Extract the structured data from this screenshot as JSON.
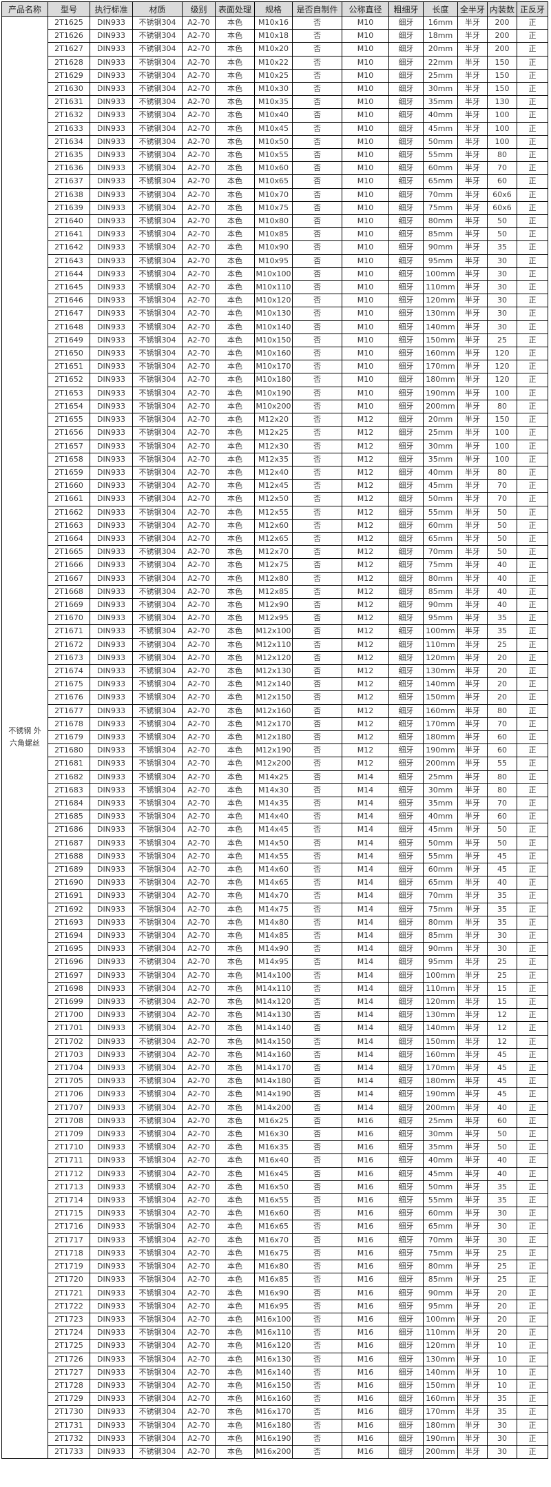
{
  "styles": {
    "header_bg": "#dbdbdb",
    "border_color": "#000000",
    "body_text_color": "#3a3a3a",
    "header_text_color": "#262626",
    "page_bg": "#ffffff"
  },
  "table": {
    "headers": [
      "产品名称",
      "型号",
      "执行标准",
      "材质",
      "级别",
      "表面处理",
      "规格",
      "是否自制件",
      "公称直径",
      "粗细牙",
      "长度",
      "全半牙",
      "内装数",
      "正反牙"
    ],
    "product_name_lines": [
      "不锈钢 外",
      "六角螺丝"
    ],
    "common": {
      "standard": "DIN933",
      "material": "不锈钢304",
      "grade": "A2-70",
      "surface": "本色",
      "self_made": "否",
      "thread_type": "细牙",
      "thread_length": "半牙",
      "direction": "正"
    },
    "row_columns": [
      "model",
      "spec",
      "diameter",
      "length",
      "pack_qty"
    ],
    "rows": [
      [
        "2T1625",
        "M10x16",
        "M10",
        "16mm",
        "200"
      ],
      [
        "2T1626",
        "M10x18",
        "M10",
        "18mm",
        "200"
      ],
      [
        "2T1627",
        "M10x20",
        "M10",
        "20mm",
        "200"
      ],
      [
        "2T1628",
        "M10x22",
        "M10",
        "22mm",
        "150"
      ],
      [
        "2T1629",
        "M10x25",
        "M10",
        "25mm",
        "150"
      ],
      [
        "2T1630",
        "M10x30",
        "M10",
        "30mm",
        "150"
      ],
      [
        "2T1631",
        "M10x35",
        "M10",
        "35mm",
        "130"
      ],
      [
        "2T1632",
        "M10x40",
        "M10",
        "40mm",
        "100"
      ],
      [
        "2T1633",
        "M10x45",
        "M10",
        "45mm",
        "100"
      ],
      [
        "2T1634",
        "M10x50",
        "M10",
        "50mm",
        "100"
      ],
      [
        "2T1635",
        "M10x55",
        "M10",
        "55mm",
        "80"
      ],
      [
        "2T1636",
        "M10x60",
        "M10",
        "60mm",
        "70"
      ],
      [
        "2T1637",
        "M10x65",
        "M10",
        "65mm",
        "60"
      ],
      [
        "2T1638",
        "M10x70",
        "M10",
        "70mm",
        "60x6"
      ],
      [
        "2T1639",
        "M10x75",
        "M10",
        "75mm",
        "60x6"
      ],
      [
        "2T1640",
        "M10x80",
        "M10",
        "80mm",
        "50"
      ],
      [
        "2T1641",
        "M10x85",
        "M10",
        "85mm",
        "50"
      ],
      [
        "2T1642",
        "M10x90",
        "M10",
        "90mm",
        "35"
      ],
      [
        "2T1643",
        "M10x95",
        "M10",
        "95mm",
        "30"
      ],
      [
        "2T1644",
        "M10x100",
        "M10",
        "100mm",
        "30"
      ],
      [
        "2T1645",
        "M10x110",
        "M10",
        "110mm",
        "30"
      ],
      [
        "2T1646",
        "M10x120",
        "M10",
        "120mm",
        "30"
      ],
      [
        "2T1647",
        "M10x130",
        "M10",
        "130mm",
        "30"
      ],
      [
        "2T1648",
        "M10x140",
        "M10",
        "140mm",
        "30"
      ],
      [
        "2T1649",
        "M10x150",
        "M10",
        "150mm",
        "25"
      ],
      [
        "2T1650",
        "M10x160",
        "M10",
        "160mm",
        "120"
      ],
      [
        "2T1651",
        "M10x170",
        "M10",
        "170mm",
        "120"
      ],
      [
        "2T1652",
        "M10x180",
        "M10",
        "180mm",
        "120"
      ],
      [
        "2T1653",
        "M10x190",
        "M10",
        "190mm",
        "100"
      ],
      [
        "2T1654",
        "M10x200",
        "M10",
        "200mm",
        "80"
      ],
      [
        "2T1655",
        "M12x20",
        "M12",
        "20mm",
        "150"
      ],
      [
        "2T1656",
        "M12x25",
        "M12",
        "25mm",
        "100"
      ],
      [
        "2T1657",
        "M12x30",
        "M12",
        "30mm",
        "100"
      ],
      [
        "2T1658",
        "M12x35",
        "M12",
        "35mm",
        "100"
      ],
      [
        "2T1659",
        "M12x40",
        "M12",
        "40mm",
        "80"
      ],
      [
        "2T1660",
        "M12x45",
        "M12",
        "45mm",
        "70"
      ],
      [
        "2T1661",
        "M12x50",
        "M12",
        "50mm",
        "70"
      ],
      [
        "2T1662",
        "M12x55",
        "M12",
        "55mm",
        "50"
      ],
      [
        "2T1663",
        "M12x60",
        "M12",
        "60mm",
        "50"
      ],
      [
        "2T1664",
        "M12x65",
        "M12",
        "65mm",
        "50"
      ],
      [
        "2T1665",
        "M12x70",
        "M12",
        "70mm",
        "50"
      ],
      [
        "2T1666",
        "M12x75",
        "M12",
        "75mm",
        "40"
      ],
      [
        "2T1667",
        "M12x80",
        "M12",
        "80mm",
        "40"
      ],
      [
        "2T1668",
        "M12x85",
        "M12",
        "85mm",
        "40"
      ],
      [
        "2T1669",
        "M12x90",
        "M12",
        "90mm",
        "40"
      ],
      [
        "2T1670",
        "M12x95",
        "M12",
        "95mm",
        "35"
      ],
      [
        "2T1671",
        "M12x100",
        "M12",
        "100mm",
        "35"
      ],
      [
        "2T1672",
        "M12x110",
        "M12",
        "110mm",
        "25"
      ],
      [
        "2T1673",
        "M12x120",
        "M12",
        "120mm",
        "20"
      ],
      [
        "2T1674",
        "M12x130",
        "M12",
        "130mm",
        "20"
      ],
      [
        "2T1675",
        "M12x140",
        "M12",
        "140mm",
        "20"
      ],
      [
        "2T1676",
        "M12x150",
        "M12",
        "150mm",
        "20"
      ],
      [
        "2T1677",
        "M12x160",
        "M12",
        "160mm",
        "80"
      ],
      [
        "2T1678",
        "M12x170",
        "M12",
        "170mm",
        "70"
      ],
      [
        "2T1679",
        "M12x180",
        "M12",
        "180mm",
        "60"
      ],
      [
        "2T1680",
        "M12x190",
        "M12",
        "190mm",
        "60"
      ],
      [
        "2T1681",
        "M12x200",
        "M12",
        "200mm",
        "55"
      ],
      [
        "2T1682",
        "M14x25",
        "M14",
        "25mm",
        "80"
      ],
      [
        "2T1683",
        "M14x30",
        "M14",
        "30mm",
        "80"
      ],
      [
        "2T1684",
        "M14x35",
        "M14",
        "35mm",
        "70"
      ],
      [
        "2T1685",
        "M14x40",
        "M14",
        "40mm",
        "60"
      ],
      [
        "2T1686",
        "M14x45",
        "M14",
        "45mm",
        "50"
      ],
      [
        "2T1687",
        "M14x50",
        "M14",
        "50mm",
        "50"
      ],
      [
        "2T1688",
        "M14x55",
        "M14",
        "55mm",
        "45"
      ],
      [
        "2T1689",
        "M14x60",
        "M14",
        "60mm",
        "45"
      ],
      [
        "2T1690",
        "M14x65",
        "M14",
        "65mm",
        "40"
      ],
      [
        "2T1691",
        "M14x70",
        "M14",
        "70mm",
        "35"
      ],
      [
        "2T1692",
        "M14x75",
        "M14",
        "75mm",
        "35"
      ],
      [
        "2T1693",
        "M14x80",
        "M14",
        "80mm",
        "35"
      ],
      [
        "2T1694",
        "M14x85",
        "M14",
        "85mm",
        "30"
      ],
      [
        "2T1695",
        "M14x90",
        "M14",
        "90mm",
        "30"
      ],
      [
        "2T1696",
        "M14x95",
        "M14",
        "95mm",
        "25"
      ],
      [
        "2T1697",
        "M14x100",
        "M14",
        "100mm",
        "25"
      ],
      [
        "2T1698",
        "M14x110",
        "M14",
        "110mm",
        "15"
      ],
      [
        "2T1699",
        "M14x120",
        "M14",
        "120mm",
        "15"
      ],
      [
        "2T1700",
        "M14x130",
        "M14",
        "130mm",
        "12"
      ],
      [
        "2T1701",
        "M14x140",
        "M14",
        "140mm",
        "12"
      ],
      [
        "2T1702",
        "M14x150",
        "M14",
        "150mm",
        "12"
      ],
      [
        "2T1703",
        "M14x160",
        "M14",
        "160mm",
        "45"
      ],
      [
        "2T1704",
        "M14x170",
        "M14",
        "170mm",
        "45"
      ],
      [
        "2T1705",
        "M14x180",
        "M14",
        "180mm",
        "45"
      ],
      [
        "2T1706",
        "M14x190",
        "M14",
        "190mm",
        "45"
      ],
      [
        "2T1707",
        "M14x200",
        "M14",
        "200mm",
        "40"
      ],
      [
        "2T1708",
        "M16x25",
        "M16",
        "25mm",
        "60"
      ],
      [
        "2T1709",
        "M16x30",
        "M16",
        "30mm",
        "50"
      ],
      [
        "2T1710",
        "M16x35",
        "M16",
        "35mm",
        "50"
      ],
      [
        "2T1711",
        "M16x40",
        "M16",
        "40mm",
        "40"
      ],
      [
        "2T1712",
        "M16x45",
        "M16",
        "45mm",
        "40"
      ],
      [
        "2T1713",
        "M16x50",
        "M16",
        "50mm",
        "35"
      ],
      [
        "2T1714",
        "M16x55",
        "M16",
        "55mm",
        "35"
      ],
      [
        "2T1715",
        "M16x60",
        "M16",
        "60mm",
        "30"
      ],
      [
        "2T1716",
        "M16x65",
        "M16",
        "65mm",
        "30"
      ],
      [
        "2T1717",
        "M16x70",
        "M16",
        "70mm",
        "30"
      ],
      [
        "2T1718",
        "M16x75",
        "M16",
        "75mm",
        "25"
      ],
      [
        "2T1719",
        "M16x80",
        "M16",
        "80mm",
        "25"
      ],
      [
        "2T1720",
        "M16x85",
        "M16",
        "85mm",
        "25"
      ],
      [
        "2T1721",
        "M16x90",
        "M16",
        "90mm",
        "20"
      ],
      [
        "2T1722",
        "M16x95",
        "M16",
        "95mm",
        "20"
      ],
      [
        "2T1723",
        "M16x100",
        "M16",
        "100mm",
        "20"
      ],
      [
        "2T1724",
        "M16x110",
        "M16",
        "110mm",
        "20"
      ],
      [
        "2T1725",
        "M16x120",
        "M16",
        "120mm",
        "10"
      ],
      [
        "2T1726",
        "M16x130",
        "M16",
        "130mm",
        "10"
      ],
      [
        "2T1727",
        "M16x140",
        "M16",
        "140mm",
        "10"
      ],
      [
        "2T1728",
        "M16x150",
        "M16",
        "150mm",
        "10"
      ],
      [
        "2T1729",
        "M16x160",
        "M16",
        "160mm",
        "35"
      ],
      [
        "2T1730",
        "M16x170",
        "M16",
        "170mm",
        "35"
      ],
      [
        "2T1731",
        "M16x180",
        "M16",
        "180mm",
        "30"
      ],
      [
        "2T1732",
        "M16x190",
        "M16",
        "190mm",
        "30"
      ],
      [
        "2T1733",
        "M16x200",
        "M16",
        "200mm",
        "30"
      ]
    ]
  }
}
